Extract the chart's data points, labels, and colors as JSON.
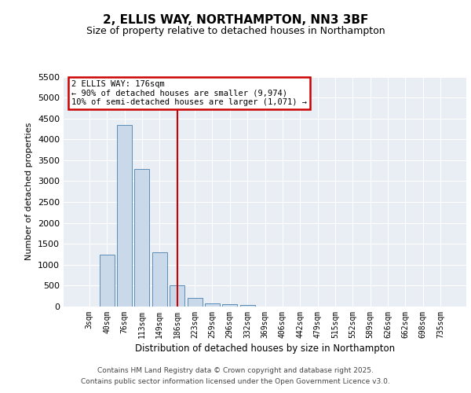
{
  "title1": "2, ELLIS WAY, NORTHAMPTON, NN3 3BF",
  "title2": "Size of property relative to detached houses in Northampton",
  "xlabel": "Distribution of detached houses by size in Northampton",
  "ylabel": "Number of detached properties",
  "categories": [
    "3sqm",
    "40sqm",
    "76sqm",
    "113sqm",
    "149sqm",
    "186sqm",
    "223sqm",
    "259sqm",
    "296sqm",
    "332sqm",
    "369sqm",
    "406sqm",
    "442sqm",
    "479sqm",
    "515sqm",
    "552sqm",
    "589sqm",
    "626sqm",
    "662sqm",
    "698sqm",
    "735sqm"
  ],
  "bar_values": [
    0,
    1250,
    4350,
    3300,
    1300,
    500,
    200,
    80,
    60,
    40,
    0,
    0,
    0,
    0,
    0,
    0,
    0,
    0,
    0,
    0,
    0
  ],
  "bar_color": "#c9d9ea",
  "bar_edge_color": "#5b8db8",
  "red_line_index": 5,
  "annotation_text": "2 ELLIS WAY: 176sqm\n← 90% of detached houses are smaller (9,974)\n10% of semi-detached houses are larger (1,071) →",
  "annotation_box_color": "#cc0000",
  "ylim": [
    0,
    5500
  ],
  "yticks": [
    0,
    500,
    1000,
    1500,
    2000,
    2500,
    3000,
    3500,
    4000,
    4500,
    5000,
    5500
  ],
  "background_color": "#e8eef4",
  "grid_color": "#ffffff",
  "footer1": "Contains HM Land Registry data © Crown copyright and database right 2025.",
  "footer2": "Contains public sector information licensed under the Open Government Licence v3.0.",
  "fig_bg": "#ffffff",
  "title1_fontsize": 11,
  "title2_fontsize": 9
}
